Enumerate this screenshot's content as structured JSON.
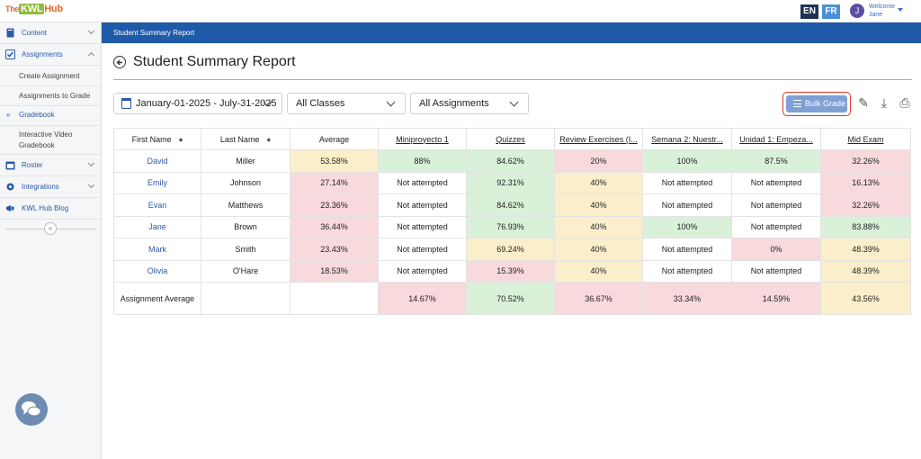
{
  "app": {
    "logo_the": "The",
    "logo_kwl": "KWL",
    "logo_hub": "Hub",
    "lang_en": "EN",
    "lang_fr": "FR",
    "user_initial": "J",
    "welcome": "Welcome",
    "user_name": "Jane"
  },
  "sidebar": {
    "content": "Content",
    "assignments": "Assignments",
    "create_assignment": "Create Assignment",
    "assignments_to_grade": "Assignments to Grade",
    "gradebook": "Gradebook",
    "interactive_video_1": "Interactive Video",
    "interactive_video_2": "Gradebook",
    "roster": "Roster",
    "integrations": "Integrations",
    "blog": "KWL Hub Blog",
    "collapse": "«",
    "active_marker": "»"
  },
  "header": {
    "breadcrumb": "Student Summary Report",
    "title": "Student Summary Report"
  },
  "filters": {
    "date_range": "January-01-2025 - July-31-2025",
    "classes": "All Classes",
    "assignments": "All Assignments"
  },
  "toolbar": {
    "bulk_grade": "Bulk Grade",
    "edit_icon": "✎",
    "download_icon": "⤓",
    "print_icon": "⎙"
  },
  "table": {
    "columns": [
      "First Name",
      "Last Name",
      "Average",
      "Miniproyecto 1",
      "Quizzes",
      "Review Exercises (I...",
      "Semana 2: Nuestr...",
      "Unidad 1: Empeza...",
      "Mid Exam"
    ],
    "sort_glyph": "◆",
    "rows": [
      {
        "first": "David",
        "last": "Miller",
        "avg": "53.58%",
        "c1": "88%",
        "c2": "84.62%",
        "c3": "20%",
        "c4": "100%",
        "c5": "87.5%",
        "c6": "32.26%"
      },
      {
        "first": "Emily",
        "last": "Johnson",
        "avg": "27.14%",
        "c1": "Not attempted",
        "c2": "92.31%",
        "c3": "40%",
        "c4": "Not attempted",
        "c5": "Not attempted",
        "c6": "16.13%"
      },
      {
        "first": "Evan",
        "last": "Matthews",
        "avg": "23.36%",
        "c1": "Not attempted",
        "c2": "84.62%",
        "c3": "40%",
        "c4": "Not attempted",
        "c5": "Not attempted",
        "c6": "32.26%"
      },
      {
        "first": "Jane",
        "last": "Brown",
        "avg": "36.44%",
        "c1": "Not attempted",
        "c2": "76.93%",
        "c3": "40%",
        "c4": "100%",
        "c5": "Not attempted",
        "c6": "83.88%"
      },
      {
        "first": "Mark",
        "last": "Smith",
        "avg": "23.43%",
        "c1": "Not attempted",
        "c2": "69.24%",
        "c3": "40%",
        "c4": "Not attempted",
        "c5": "0%",
        "c6": "48.39%"
      },
      {
        "first": "Olivia",
        "last": "O'Hare",
        "avg": "18.53%",
        "c1": "Not attempted",
        "c2": "15.39%",
        "c3": "40%",
        "c4": "Not attempted",
        "c5": "Not attempted",
        "c6": "48.39%"
      }
    ],
    "assignment_average_label": "Assignment Average",
    "assignment_averages": [
      "14.67%",
      "70.52%",
      "36.67%",
      "33.34%",
      "14.59%",
      "43.56%"
    ]
  },
  "colors": {
    "green": "#d9f1d8",
    "yellow": "#fbeecb",
    "red": "#f8d9dc",
    "primary": "#1f5aa8"
  }
}
